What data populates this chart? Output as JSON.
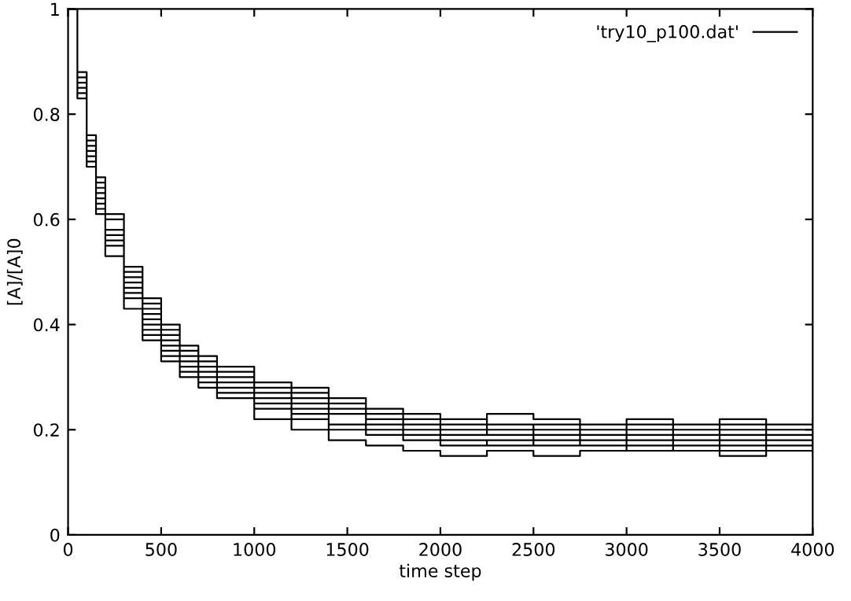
{
  "chart_data": {
    "type": "step",
    "xlabel": "time step",
    "ylabel": "[A]/[A]0",
    "xlim": [
      0,
      4000
    ],
    "ylim": [
      0,
      1
    ],
    "xticks": [
      0,
      500,
      1000,
      1500,
      2000,
      2500,
      3000,
      3500,
      4000
    ],
    "yticks": [
      0,
      0.2,
      0.4,
      0.6,
      0.8,
      1
    ],
    "grid": false,
    "legend": "top right",
    "line_style": "solid",
    "series": [
      {
        "name": "'try10_p100.dat'",
        "color": "#000000",
        "x": [
          0,
          50,
          100,
          150,
          200,
          300,
          400,
          500,
          600,
          700,
          800,
          1000,
          1200,
          1400,
          1600,
          1800,
          2000,
          2250,
          2500,
          2750,
          3000,
          3250,
          3500,
          3750,
          4000,
          null,
          0,
          50,
          100,
          150,
          200,
          300,
          400,
          500,
          600,
          700,
          800,
          1000,
          1200,
          1400,
          1600,
          1800,
          2000,
          2250,
          2500,
          2750,
          3000,
          3250,
          3500,
          3750,
          4000,
          null,
          0,
          50,
          100,
          150,
          200,
          300,
          400,
          500,
          600,
          700,
          800,
          1000,
          1200,
          1400,
          1600,
          1800,
          2000,
          2250,
          2500,
          2750,
          3000,
          3250,
          3500,
          3750,
          4000,
          null,
          0,
          50,
          100,
          150,
          200,
          300,
          400,
          500,
          600,
          700,
          800,
          1000,
          1200,
          1400,
          1600,
          1800,
          2000,
          2250,
          2500,
          2750,
          3000,
          3250,
          3500,
          3750,
          4000,
          null,
          0,
          50,
          100,
          150,
          200,
          300,
          400,
          500,
          600,
          700,
          800,
          1000,
          1200,
          1400,
          1600,
          1800,
          2000,
          2250,
          2500,
          2750,
          3000,
          3250,
          3500,
          3750,
          4000,
          null,
          0,
          50,
          100,
          150,
          200,
          300,
          400,
          500,
          600,
          700,
          800,
          1000,
          1200,
          1400,
          1600,
          1800,
          2000,
          2250,
          2500,
          2750,
          3000,
          3250,
          3500,
          3750,
          4000,
          null,
          0,
          50,
          100,
          150,
          200,
          300,
          400,
          500,
          600,
          700,
          800,
          1000,
          1200,
          1400,
          1600,
          1800,
          2000,
          2250,
          2500,
          2750,
          3000,
          3250,
          3500,
          3750,
          4000,
          null,
          0,
          50,
          100,
          150,
          200,
          300,
          400,
          500,
          600,
          700,
          800,
          1000,
          1200,
          1400,
          1600,
          1800,
          2000,
          2250,
          2500,
          2750,
          3000,
          3250,
          3500,
          3750,
          4000,
          null,
          0,
          50,
          100,
          150,
          200,
          300,
          400,
          500,
          600,
          700,
          800,
          1000,
          1200,
          1400,
          1600,
          1800,
          2000,
          2250,
          2500,
          2750,
          3000,
          3250,
          3500,
          3750,
          4000,
          null,
          0,
          50,
          100,
          150,
          200,
          300,
          400,
          500,
          600,
          700,
          800,
          1000,
          1200,
          1400,
          1600,
          1800,
          2000,
          2250,
          2500,
          2750,
          3000,
          3250,
          3500,
          3750,
          4000
        ],
        "values": [
          1,
          0.86,
          0.74,
          0.65,
          0.58,
          0.48,
          0.42,
          0.37,
          0.34,
          0.32,
          0.3,
          0.27,
          0.25,
          0.23,
          0.22,
          0.21,
          0.2,
          0.2,
          0.19,
          0.2,
          0.19,
          0.18,
          0.19,
          0.18,
          0.19,
          null,
          1,
          0.84,
          0.72,
          0.62,
          0.55,
          0.45,
          0.39,
          0.35,
          0.32,
          0.3,
          0.28,
          0.25,
          0.23,
          0.21,
          0.2,
          0.19,
          0.18,
          0.17,
          0.18,
          0.17,
          0.16,
          0.17,
          0.16,
          0.17,
          0.16,
          null,
          1,
          0.87,
          0.75,
          0.67,
          0.6,
          0.5,
          0.44,
          0.39,
          0.36,
          0.34,
          0.32,
          0.29,
          0.28,
          0.26,
          0.24,
          0.23,
          0.22,
          0.21,
          0.2,
          0.21,
          0.2,
          0.21,
          0.2,
          0.21,
          0.2,
          null,
          1,
          0.83,
          0.7,
          0.61,
          0.53,
          0.43,
          0.37,
          0.33,
          0.3,
          0.28,
          0.26,
          0.22,
          0.2,
          0.18,
          0.17,
          0.16,
          0.15,
          0.16,
          0.15,
          0.16,
          0.17,
          0.16,
          0.15,
          0.16,
          0.15,
          null,
          1,
          0.85,
          0.73,
          0.64,
          0.57,
          0.47,
          0.41,
          0.36,
          0.33,
          0.31,
          0.3,
          0.27,
          0.26,
          0.24,
          0.23,
          0.22,
          0.21,
          0.2,
          0.19,
          0.18,
          0.19,
          0.2,
          0.19,
          0.2,
          0.21,
          null,
          1,
          0.88,
          0.76,
          0.68,
          0.61,
          0.51,
          0.45,
          0.4,
          0.36,
          0.33,
          0.31,
          0.28,
          0.26,
          0.25,
          0.23,
          0.22,
          0.2,
          0.19,
          0.18,
          0.19,
          0.18,
          0.17,
          0.18,
          0.17,
          0.18,
          null,
          1,
          0.84,
          0.71,
          0.63,
          0.56,
          0.46,
          0.4,
          0.36,
          0.34,
          0.32,
          0.3,
          0.27,
          0.25,
          0.23,
          0.22,
          0.21,
          0.21,
          0.2,
          0.21,
          0.2,
          0.21,
          0.2,
          0.21,
          0.2,
          0.22,
          null,
          1,
          0.86,
          0.74,
          0.66,
          0.58,
          0.49,
          0.43,
          0.38,
          0.35,
          0.33,
          0.31,
          0.28,
          0.27,
          0.25,
          0.24,
          0.23,
          0.22,
          0.23,
          0.22,
          0.21,
          0.22,
          0.21,
          0.22,
          0.21,
          0.21,
          null,
          1,
          0.83,
          0.71,
          0.62,
          0.55,
          0.45,
          0.38,
          0.34,
          0.31,
          0.29,
          0.27,
          0.24,
          0.22,
          0.2,
          0.19,
          0.18,
          0.17,
          0.18,
          0.17,
          0.18,
          0.17,
          0.16,
          0.17,
          0.18,
          0.17,
          null,
          1,
          0.85,
          0.72,
          0.63,
          0.56,
          0.47,
          0.41,
          0.37,
          0.34,
          0.31,
          0.29,
          0.26,
          0.24,
          0.23,
          0.21,
          0.2,
          0.19,
          0.19,
          0.18,
          0.17,
          0.18,
          0.19,
          0.18,
          0.19,
          0.18
        ]
      }
    ]
  }
}
